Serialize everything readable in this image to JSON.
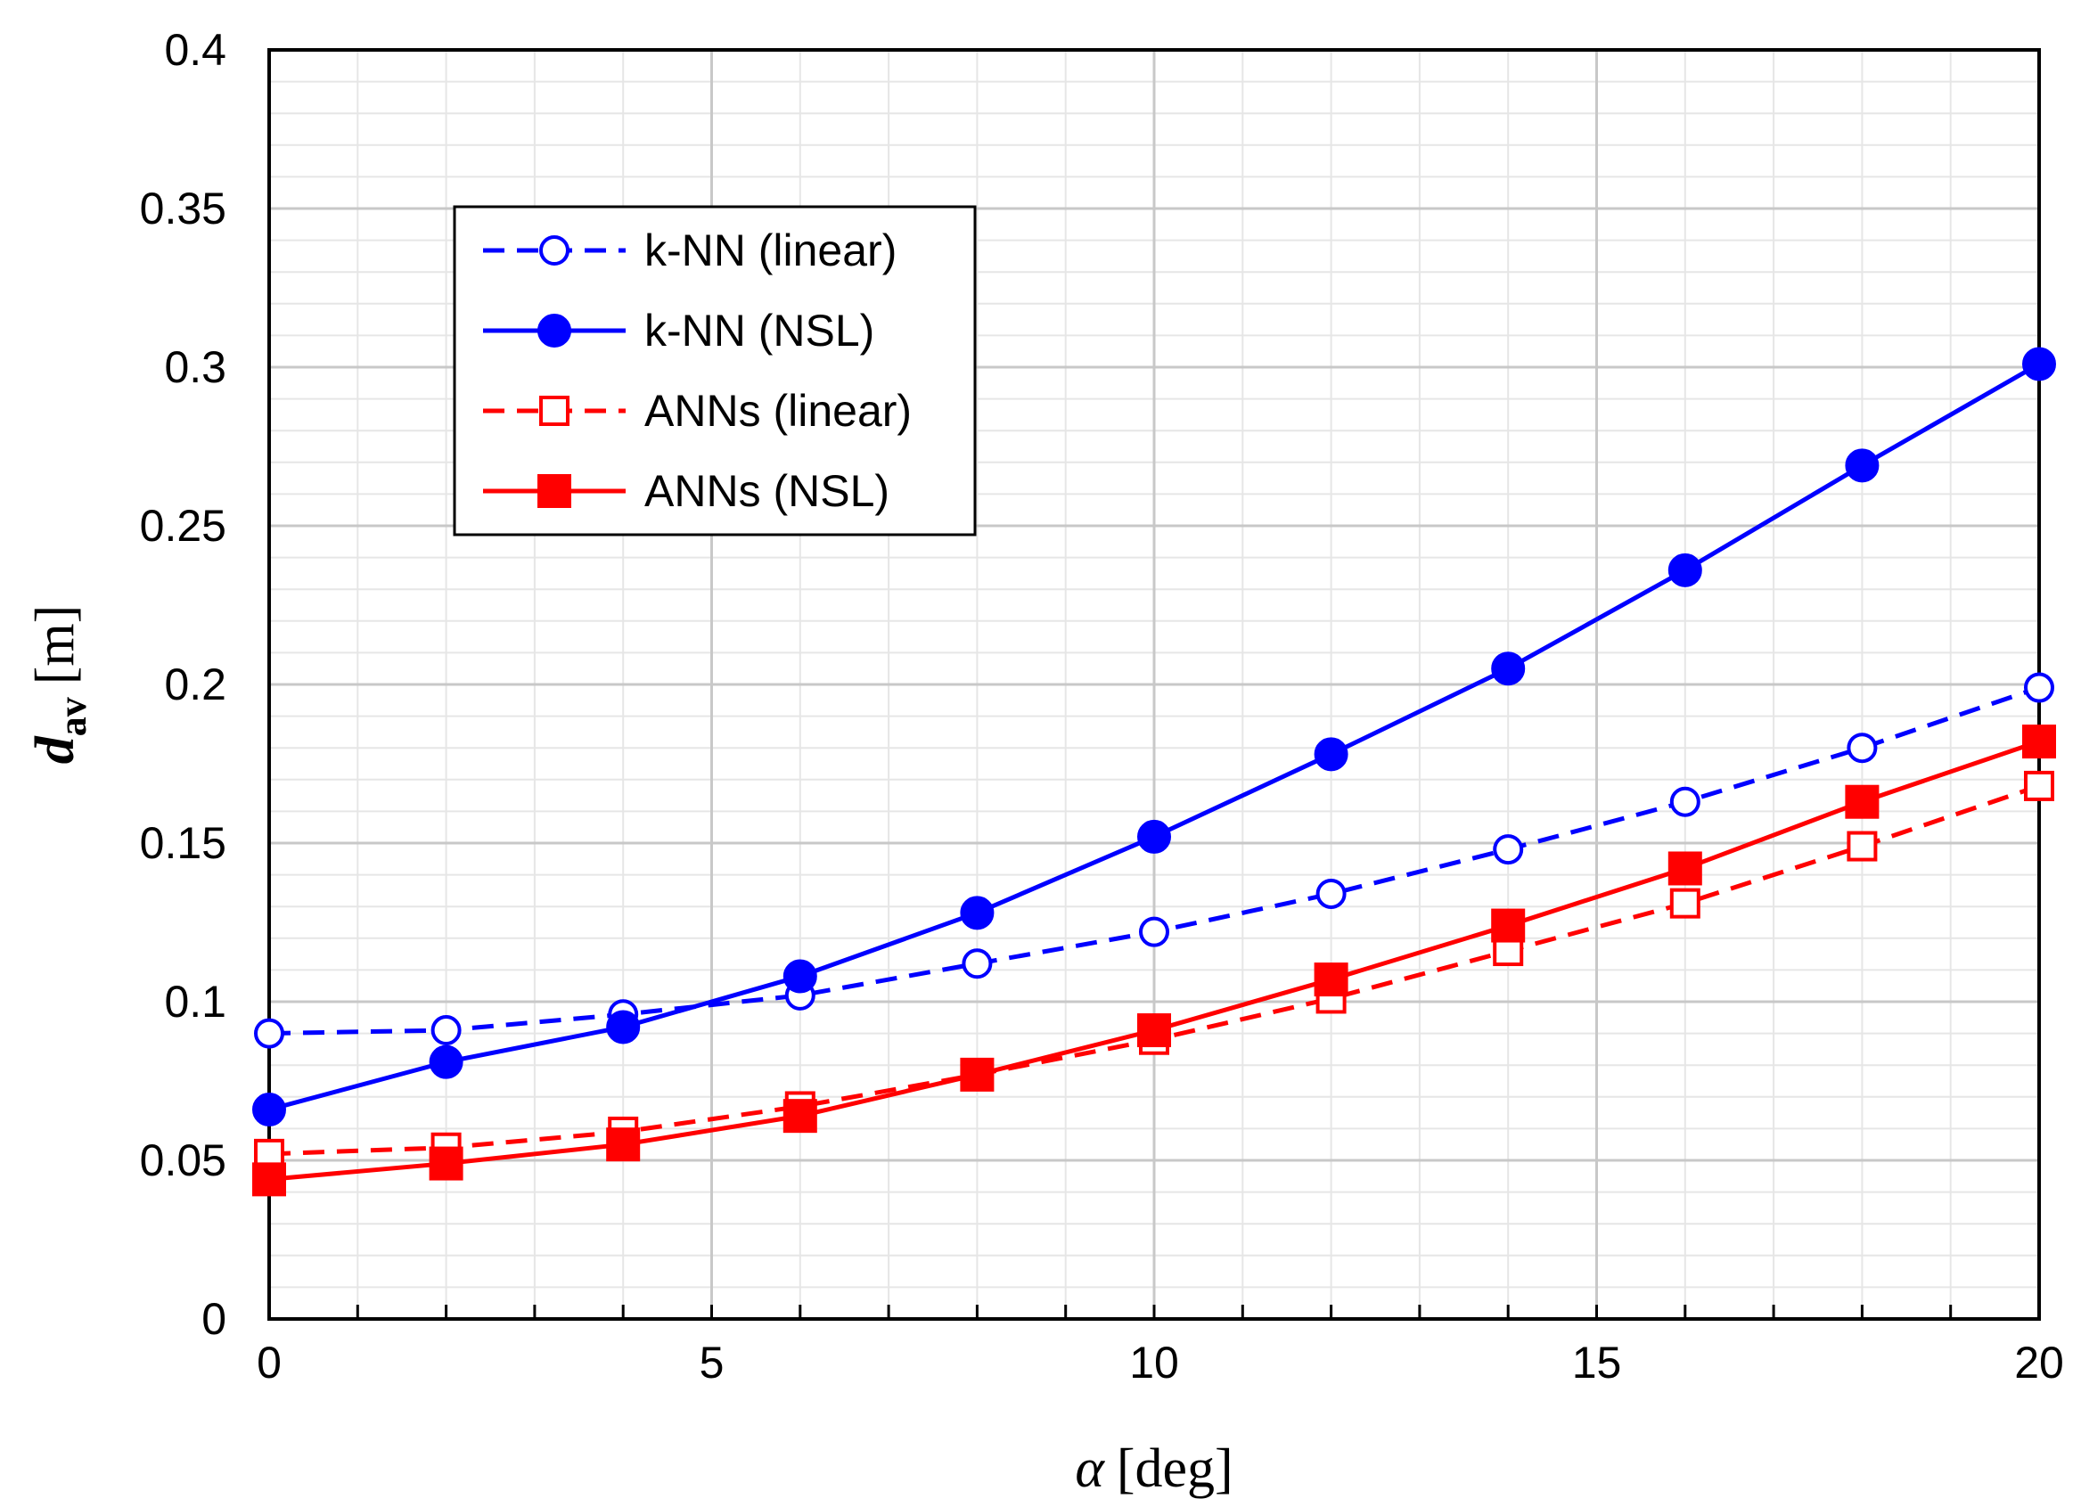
{
  "chart_data": {
    "type": "line",
    "xlabel": {
      "symbol": "α",
      "unit": "[deg]"
    },
    "ylabel": {
      "symbol": "d",
      "subscript": "av",
      "unit": "[m]"
    },
    "xlim": [
      0,
      20
    ],
    "ylim": [
      0,
      0.4
    ],
    "x_ticks": [
      "0",
      "5",
      "10",
      "15",
      "20"
    ],
    "y_ticks": [
      "0",
      "0.05",
      "0.1",
      "0.15",
      "0.2",
      "0.25",
      "0.3",
      "0.35",
      "0.4"
    ],
    "grid": true,
    "legend_position": "upper-left",
    "x": [
      0,
      2,
      4,
      6,
      8,
      10,
      12,
      14,
      16,
      18,
      20
    ],
    "series": [
      {
        "name": "k-NN (linear)",
        "color": "#0000ff",
        "dash": true,
        "marker": "circle",
        "filled": false,
        "values": [
          0.09,
          0.091,
          0.096,
          0.102,
          0.112,
          0.122,
          0.134,
          0.148,
          0.163,
          0.18,
          0.199
        ]
      },
      {
        "name": "k-NN (NSL)",
        "color": "#0000ff",
        "dash": false,
        "marker": "circle",
        "filled": true,
        "values": [
          0.066,
          0.081,
          0.092,
          0.108,
          0.128,
          0.152,
          0.178,
          0.205,
          0.236,
          0.269,
          0.301
        ]
      },
      {
        "name": "ANNs (linear)",
        "color": "#ff0000",
        "dash": true,
        "marker": "square",
        "filled": false,
        "values": [
          0.052,
          0.054,
          0.059,
          0.067,
          0.077,
          0.088,
          0.101,
          0.116,
          0.131,
          0.149,
          0.168
        ]
      },
      {
        "name": "ANNs (NSL)",
        "color": "#ff0000",
        "dash": false,
        "marker": "square",
        "filled": true,
        "values": [
          0.044,
          0.049,
          0.055,
          0.064,
          0.077,
          0.091,
          0.107,
          0.124,
          0.142,
          0.163,
          0.182
        ]
      }
    ]
  }
}
